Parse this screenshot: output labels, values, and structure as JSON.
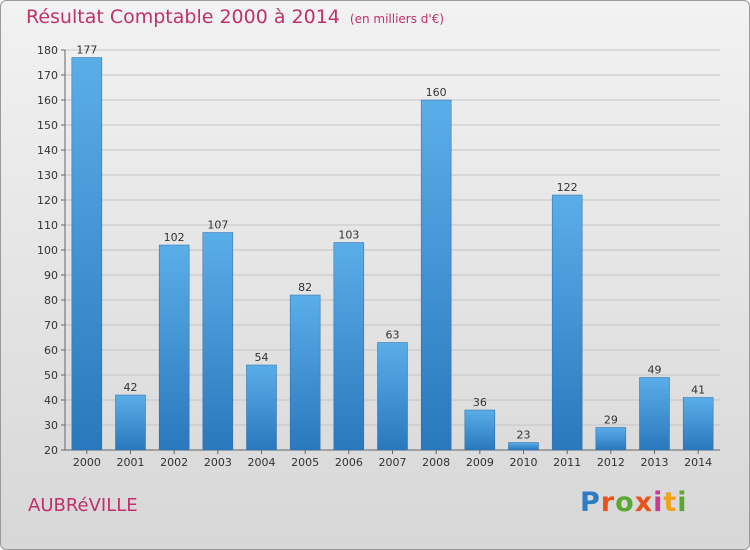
{
  "header": {
    "title": "Résultat Comptable 2000 à 2014",
    "subtitle": "(en milliers d'€)"
  },
  "commune": "AUBRéVILLE",
  "logo": {
    "text": "Proxiti",
    "colors": [
      "#2e7cc4",
      "#e8531c",
      "#5aa832",
      "#e8531c",
      "#c93a8f",
      "#f0a21a",
      "#5aa832"
    ]
  },
  "chart_data": {
    "type": "bar",
    "title": "Résultat Comptable 2000 à 2014",
    "subtitle": "(en milliers d'€)",
    "xlabel": "",
    "ylabel": "",
    "categories": [
      "2000",
      "2001",
      "2002",
      "2003",
      "2004",
      "2005",
      "2006",
      "2007",
      "2008",
      "2009",
      "2010",
      "2011",
      "2012",
      "2013",
      "2014"
    ],
    "values": [
      177,
      42,
      102,
      107,
      54,
      82,
      103,
      63,
      160,
      36,
      23,
      122,
      29,
      49,
      41
    ],
    "ylim": [
      20,
      180
    ],
    "yticks": [
      20,
      30,
      40,
      50,
      60,
      70,
      80,
      90,
      100,
      110,
      120,
      130,
      140,
      150,
      160,
      170,
      180
    ],
    "grid": true,
    "bar_color_top": "#5aaee8",
    "bar_color_bottom": "#2a78bd"
  }
}
